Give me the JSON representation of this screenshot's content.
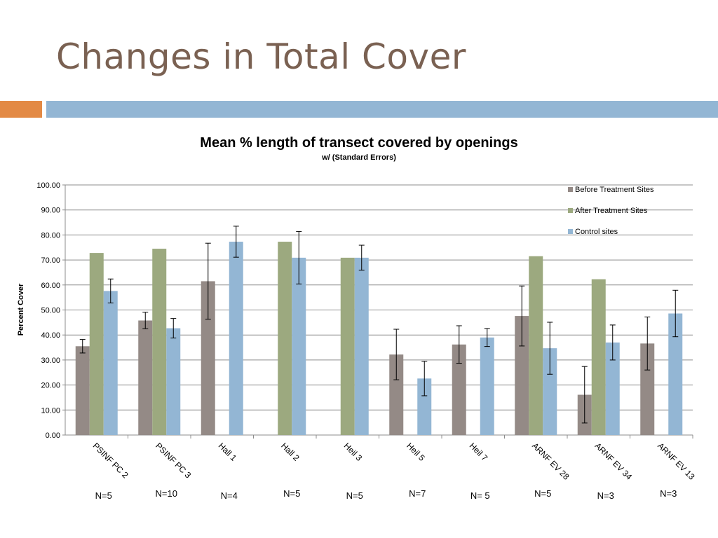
{
  "slide": {
    "title": "Changes in Total Cover"
  },
  "chart_data": {
    "type": "bar",
    "title": "Mean % length of transect covered by openings",
    "subtitle": "w/ (Standard Errors)",
    "ylabel": "Percent Cover",
    "xlabel": "",
    "ylim": [
      0,
      100
    ],
    "ytick_step": 10,
    "ytick_labels": [
      "0.00",
      "10.00",
      "20.00",
      "30.00",
      "40.00",
      "50.00",
      "60.00",
      "70.00",
      "80.00",
      "90.00",
      "100.00"
    ],
    "grid": true,
    "legend_position": "top-right",
    "categories": [
      "PSINF PC 2",
      "PSINF PC 3",
      "Hall 1",
      "Hall 2",
      "Heil 3",
      "Heil 5",
      "Heil 7",
      "ARNF EV 28",
      "ARNF EV 34",
      "ARNF EV 13"
    ],
    "sample_sizes": [
      "N=5",
      "N=10",
      "N=4",
      "N=5",
      "N=5",
      "N=7",
      "N= 5",
      "N=5",
      "N=3",
      "N=3"
    ],
    "series": [
      {
        "name": "Before Treatment Sites",
        "color": "#948a86",
        "values": [
          35.5,
          45.8,
          61.5,
          null,
          null,
          32.2,
          36.2,
          47.6,
          16.1,
          36.6
        ],
        "errors": [
          2.7,
          3.3,
          15.2,
          null,
          null,
          10.1,
          7.5,
          12.0,
          11.3,
          10.6
        ]
      },
      {
        "name": "After Treatment Sites",
        "color": "#9ca97f",
        "values": [
          72.8,
          74.5,
          null,
          77.3,
          70.9,
          null,
          null,
          71.5,
          62.3,
          null
        ],
        "errors": [
          null,
          null,
          null,
          null,
          null,
          null,
          null,
          null,
          null,
          null
        ]
      },
      {
        "name": "Control sites",
        "color": "#93b6d4",
        "values": [
          57.6,
          42.7,
          77.3,
          70.9,
          70.9,
          22.6,
          39.0,
          34.7,
          37.0,
          48.6
        ],
        "errors": [
          4.8,
          3.9,
          6.2,
          10.5,
          5.0,
          6.9,
          3.6,
          10.4,
          7.0,
          9.3
        ]
      }
    ]
  }
}
